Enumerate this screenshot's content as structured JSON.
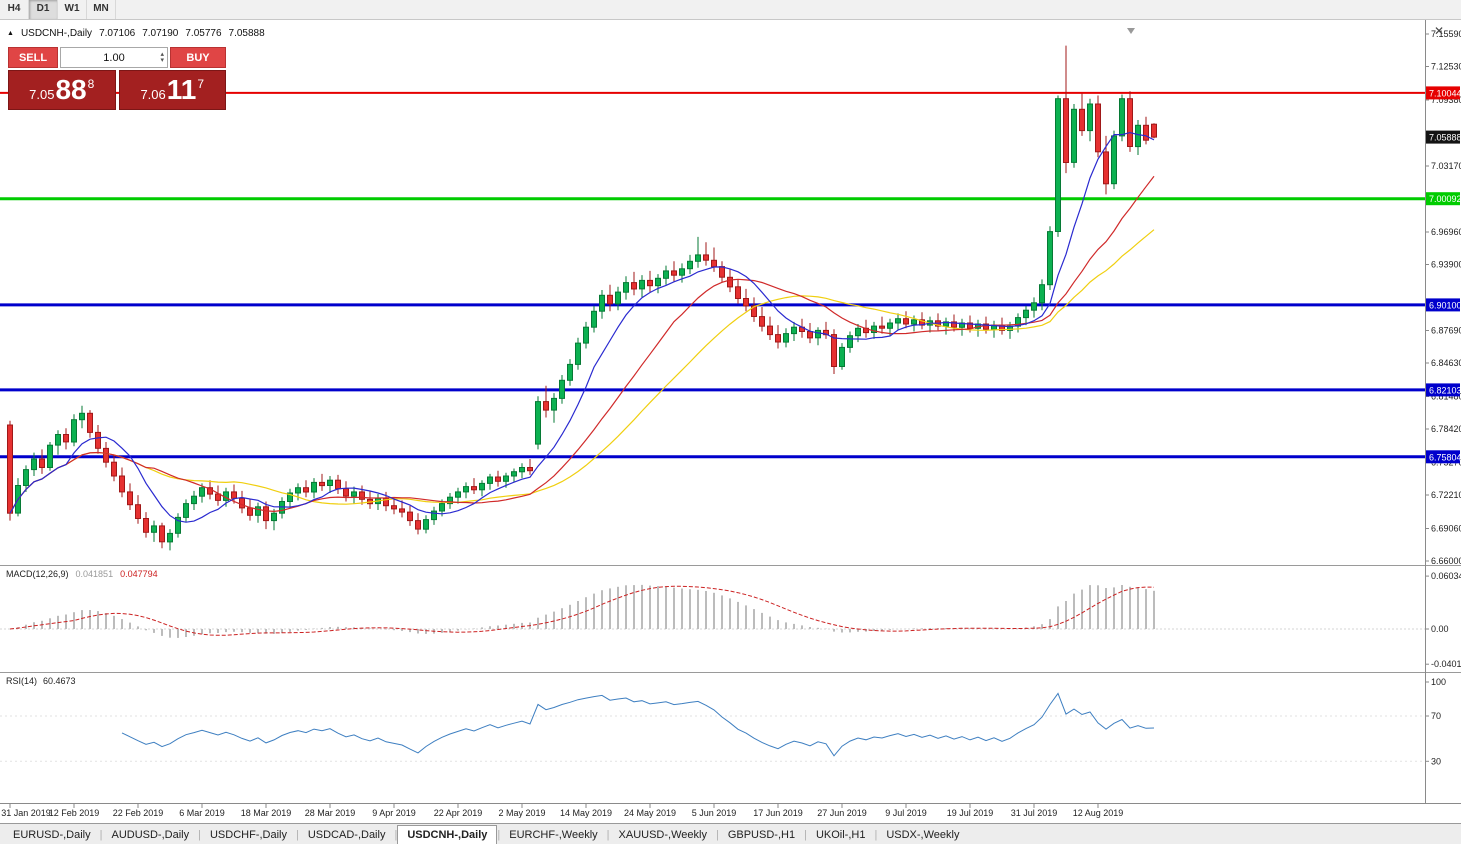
{
  "window": {
    "close_glyph": "✕"
  },
  "toolbar": {
    "timeframes": [
      {
        "label": "H4",
        "active": false
      },
      {
        "label": "D1",
        "active": true
      },
      {
        "label": "W1",
        "active": false
      },
      {
        "label": "MN",
        "active": false
      }
    ]
  },
  "chart_header": {
    "marker": "▲",
    "symbol": "USDCNH-,Daily",
    "open": "7.07106",
    "high": "7.07190",
    "low": "7.05776",
    "close": "7.05888"
  },
  "trade_panel": {
    "sell_label": "SELL",
    "buy_label": "BUY",
    "volume": "1.00",
    "spinner_up": "▴",
    "spinner_down": "▾",
    "sell_price": {
      "base": "7.05",
      "big": "88",
      "sup": "8"
    },
    "buy_price": {
      "base": "7.06",
      "big": "11",
      "sup": "7"
    }
  },
  "indicators": {
    "macd": {
      "title": "MACD(12,26,9)",
      "value_main": "0.041851",
      "value_signal": "0.047794",
      "axis": [
        {
          "label": "0.060343",
          "value": 0.060343
        },
        {
          "label": "0.00",
          "value": 0
        },
        {
          "label": "-0.040136",
          "value": -0.040136
        }
      ]
    },
    "rsi": {
      "title": "RSI(14)",
      "value": "60.4673",
      "axis": [
        {
          "label": "100",
          "value": 100
        },
        {
          "label": "70",
          "value": 70
        },
        {
          "label": "30",
          "value": 30
        }
      ]
    }
  },
  "tabs": {
    "separator": "|",
    "items": [
      {
        "label": "EURUSD-,Daily",
        "active": false
      },
      {
        "label": "AUDUSD-,Daily",
        "active": false
      },
      {
        "label": "USDCHF-,Daily",
        "active": false
      },
      {
        "label": "USDCAD-,Daily",
        "active": false
      },
      {
        "label": "USDCNH-,Daily",
        "active": true
      },
      {
        "label": "EURCHF-,Weekly",
        "active": false
      },
      {
        "label": "XAUUSD-,Weekly",
        "active": false
      },
      {
        "label": "GBPUSD-,H1",
        "active": false
      },
      {
        "label": "UKOil-,H1",
        "active": false
      },
      {
        "label": "USDX-,Weekly",
        "active": false
      }
    ]
  },
  "chart_data": {
    "type": "candlestick",
    "symbol": "USDCNH",
    "timeframe": "Daily",
    "price_range": {
      "min": 6.66,
      "max": 7.1559
    },
    "current_price": {
      "value": 7.05888,
      "label": "7.05888"
    },
    "colors": {
      "up": "#0cb151",
      "up_border": "#067a35",
      "down": "#e63131",
      "down_border": "#a01818"
    },
    "y_axis_labels": [
      {
        "label": "7.15590",
        "value": 7.1559
      },
      {
        "label": "7.12530",
        "value": 7.1253
      },
      {
        "label": "7.09380",
        "value": 7.0938
      },
      {
        "label": "7.03170",
        "value": 7.0317
      },
      {
        "label": "6.96960",
        "value": 6.9696
      },
      {
        "label": "6.93900",
        "value": 6.939
      },
      {
        "label": "6.87690",
        "value": 6.8769
      },
      {
        "label": "6.84630",
        "value": 6.8463
      },
      {
        "label": "6.81480",
        "value": 6.8148
      },
      {
        "label": "6.78420",
        "value": 6.7842
      },
      {
        "label": "6.75270",
        "value": 6.7527
      },
      {
        "label": "6.72210",
        "value": 6.7221
      },
      {
        "label": "6.69060",
        "value": 6.6906
      },
      {
        "label": "6.66000",
        "value": 6.66
      }
    ],
    "levels": [
      {
        "price": 7.10044,
        "label": "7.10044",
        "color": "#e60000",
        "width": 2
      },
      {
        "price": 7.00092,
        "label": "7.00092",
        "color": "#00cc00",
        "width": 3
      },
      {
        "price": 6.901,
        "label": "6.90100",
        "color": "#0000cc",
        "width": 3
      },
      {
        "price": 6.82103,
        "label": "6.82103",
        "color": "#0000cc",
        "width": 3
      },
      {
        "price": 6.75804,
        "label": "6.75804",
        "color": "#0000cc",
        "width": 3
      }
    ],
    "moving_averages": [
      {
        "period": 8,
        "color": "#2a2ad0"
      },
      {
        "period": 18,
        "color": "#d02a2a"
      },
      {
        "period": 28,
        "color": "#f0cf10"
      }
    ],
    "x_labels": {
      "indices": [
        0,
        8,
        16,
        24,
        32,
        40,
        48,
        56,
        64,
        72,
        80,
        88,
        96,
        104,
        112,
        120,
        128,
        136
      ],
      "labels": [
        "31 Jan 2019",
        "12 Feb 2019",
        "22 Feb 2019",
        "6 Mar 2019",
        "18 Mar 2019",
        "28 Mar 2019",
        "9 Apr 2019",
        "22 Apr 2019",
        "2 May 2019",
        "14 May 2019",
        "24 May 2019",
        "5 Jun 2019",
        "17 Jun 2019",
        "27 Jun 2019",
        "9 Jul 2019",
        "19 Jul 2019",
        "31 Jul 2019",
        "12 Aug 2019"
      ]
    },
    "candles": [
      [
        6.788,
        6.792,
        6.698,
        6.705
      ],
      [
        6.705,
        6.738,
        6.702,
        6.731
      ],
      [
        6.731,
        6.75,
        6.725,
        6.746
      ],
      [
        6.746,
        6.762,
        6.74,
        6.756
      ],
      [
        6.756,
        6.765,
        6.742,
        6.748
      ],
      [
        6.748,
        6.772,
        6.745,
        6.769
      ],
      [
        6.769,
        6.783,
        6.76,
        6.779
      ],
      [
        6.779,
        6.785,
        6.765,
        6.772
      ],
      [
        6.772,
        6.798,
        6.768,
        6.793
      ],
      [
        6.793,
        6.806,
        6.785,
        6.799
      ],
      [
        6.799,
        6.802,
        6.776,
        6.781
      ],
      [
        6.781,
        6.788,
        6.761,
        6.766
      ],
      [
        6.766,
        6.772,
        6.748,
        6.753
      ],
      [
        6.753,
        6.76,
        6.735,
        6.74
      ],
      [
        6.74,
        6.748,
        6.72,
        6.725
      ],
      [
        6.725,
        6.733,
        6.708,
        6.713
      ],
      [
        6.713,
        6.722,
        6.695,
        6.7
      ],
      [
        6.7,
        6.706,
        6.682,
        6.687
      ],
      [
        6.687,
        6.698,
        6.678,
        6.693
      ],
      [
        6.693,
        6.696,
        6.672,
        6.678
      ],
      [
        6.678,
        6.69,
        6.67,
        6.686
      ],
      [
        6.686,
        6.705,
        6.682,
        6.701
      ],
      [
        6.701,
        6.718,
        6.697,
        6.714
      ],
      [
        6.714,
        6.726,
        6.708,
        6.721
      ],
      [
        6.721,
        6.733,
        6.715,
        6.729
      ],
      [
        6.729,
        6.736,
        6.718,
        6.723
      ],
      [
        6.723,
        6.731,
        6.712,
        6.717
      ],
      [
        6.717,
        6.729,
        6.711,
        6.725
      ],
      [
        6.725,
        6.732,
        6.714,
        6.719
      ],
      [
        6.719,
        6.726,
        6.705,
        6.71
      ],
      [
        6.71,
        6.718,
        6.698,
        6.703
      ],
      [
        6.703,
        6.715,
        6.696,
        6.711
      ],
      [
        6.711,
        6.716,
        6.69,
        6.698
      ],
      [
        6.698,
        6.709,
        6.689,
        6.705
      ],
      [
        6.705,
        6.72,
        6.7,
        6.716
      ],
      [
        6.716,
        6.728,
        6.71,
        6.724
      ],
      [
        6.724,
        6.733,
        6.717,
        6.729
      ],
      [
        6.729,
        6.736,
        6.72,
        6.725
      ],
      [
        6.725,
        6.738,
        6.719,
        6.734
      ],
      [
        6.734,
        6.742,
        6.726,
        6.731
      ],
      [
        6.731,
        6.74,
        6.724,
        6.736
      ],
      [
        6.736,
        6.741,
        6.723,
        6.728
      ],
      [
        6.728,
        6.735,
        6.716,
        6.721
      ],
      [
        6.721,
        6.73,
        6.714,
        6.725
      ],
      [
        6.725,
        6.731,
        6.713,
        6.718
      ],
      [
        6.718,
        6.726,
        6.709,
        6.714
      ],
      [
        6.714,
        6.723,
        6.708,
        6.719
      ],
      [
        6.719,
        6.725,
        6.707,
        6.712
      ],
      [
        6.712,
        6.72,
        6.704,
        6.709
      ],
      [
        6.709,
        6.717,
        6.701,
        6.706
      ],
      [
        6.706,
        6.712,
        6.693,
        6.698
      ],
      [
        6.698,
        6.705,
        6.685,
        6.69
      ],
      [
        6.69,
        6.703,
        6.686,
        6.699
      ],
      [
        6.699,
        6.711,
        6.694,
        6.707
      ],
      [
        6.707,
        6.718,
        6.702,
        6.714
      ],
      [
        6.714,
        6.724,
        6.709,
        6.72
      ],
      [
        6.72,
        6.729,
        6.714,
        6.725
      ],
      [
        6.725,
        6.734,
        6.719,
        6.73
      ],
      [
        6.73,
        6.738,
        6.723,
        6.727
      ],
      [
        6.727,
        6.736,
        6.721,
        6.733
      ],
      [
        6.733,
        6.742,
        6.727,
        6.739
      ],
      [
        6.739,
        6.745,
        6.73,
        6.735
      ],
      [
        6.735,
        6.743,
        6.729,
        6.74
      ],
      [
        6.74,
        6.747,
        6.734,
        6.744
      ],
      [
        6.744,
        6.752,
        6.738,
        6.748
      ],
      [
        6.748,
        6.756,
        6.741,
        6.745
      ],
      [
        6.77,
        6.815,
        6.765,
        6.81
      ],
      [
        6.81,
        6.825,
        6.795,
        6.802
      ],
      [
        6.802,
        6.818,
        6.79,
        6.813
      ],
      [
        6.813,
        6.835,
        6.808,
        6.83
      ],
      [
        6.83,
        6.85,
        6.825,
        6.845
      ],
      [
        6.845,
        6.87,
        6.84,
        6.865
      ],
      [
        6.865,
        6.885,
        6.86,
        6.88
      ],
      [
        6.88,
        6.9,
        6.875,
        6.895
      ],
      [
        6.895,
        6.915,
        6.888,
        6.91
      ],
      [
        6.91,
        6.92,
        6.895,
        6.902
      ],
      [
        6.902,
        6.918,
        6.896,
        6.913
      ],
      [
        6.913,
        6.928,
        6.906,
        6.922
      ],
      [
        6.922,
        6.932,
        6.91,
        6.916
      ],
      [
        6.916,
        6.929,
        6.908,
        6.924
      ],
      [
        6.924,
        6.933,
        6.913,
        6.919
      ],
      [
        6.919,
        6.93,
        6.912,
        6.926
      ],
      [
        6.926,
        6.938,
        6.92,
        6.933
      ],
      [
        6.933,
        6.942,
        6.923,
        6.929
      ],
      [
        6.929,
        6.94,
        6.922,
        6.935
      ],
      [
        6.935,
        6.948,
        6.93,
        6.942
      ],
      [
        6.942,
        6.965,
        6.936,
        6.948
      ],
      [
        6.948,
        6.96,
        6.938,
        6.943
      ],
      [
        6.943,
        6.955,
        6.932,
        6.937
      ],
      [
        6.937,
        6.942,
        6.922,
        6.927
      ],
      [
        6.927,
        6.935,
        6.913,
        6.918
      ],
      [
        6.918,
        6.925,
        6.902,
        6.907
      ],
      [
        6.907,
        6.916,
        6.895,
        6.9
      ],
      [
        6.9,
        6.908,
        6.885,
        6.89
      ],
      [
        6.89,
        6.899,
        6.876,
        6.881
      ],
      [
        6.881,
        6.89,
        6.868,
        6.873
      ],
      [
        6.873,
        6.882,
        6.86,
        6.866
      ],
      [
        6.866,
        6.879,
        6.861,
        6.874
      ],
      [
        6.874,
        6.885,
        6.867,
        6.88
      ],
      [
        6.88,
        6.888,
        6.87,
        6.876
      ],
      [
        6.876,
        6.884,
        6.865,
        6.87
      ],
      [
        6.87,
        6.88,
        6.863,
        6.877
      ],
      [
        6.877,
        6.885,
        6.869,
        6.873
      ],
      [
        6.873,
        6.878,
        6.836,
        6.843
      ],
      [
        6.843,
        6.865,
        6.84,
        6.861
      ],
      [
        6.861,
        6.876,
        6.856,
        6.872
      ],
      [
        6.872,
        6.883,
        6.866,
        6.879
      ],
      [
        6.879,
        6.887,
        6.87,
        6.875
      ],
      [
        6.875,
        6.885,
        6.869,
        6.881
      ],
      [
        6.881,
        6.89,
        6.874,
        6.879
      ],
      [
        6.879,
        6.888,
        6.872,
        6.884
      ],
      [
        6.884,
        6.893,
        6.877,
        6.888
      ],
      [
        6.888,
        6.895,
        6.879,
        6.883
      ],
      [
        6.883,
        6.891,
        6.876,
        6.887
      ],
      [
        6.887,
        6.894,
        6.878,
        6.882
      ],
      [
        6.882,
        6.89,
        6.875,
        6.886
      ],
      [
        6.886,
        6.893,
        6.877,
        6.881
      ],
      [
        6.881,
        6.889,
        6.873,
        6.885
      ],
      [
        6.885,
        6.892,
        6.876,
        6.88
      ],
      [
        6.88,
        6.888,
        6.872,
        6.884
      ],
      [
        6.884,
        6.891,
        6.875,
        6.879
      ],
      [
        6.879,
        6.887,
        6.871,
        6.883
      ],
      [
        6.883,
        6.89,
        6.874,
        6.878
      ],
      [
        6.878,
        6.886,
        6.87,
        6.882
      ],
      [
        6.882,
        6.889,
        6.873,
        6.877
      ],
      [
        6.877,
        6.885,
        6.869,
        6.881
      ],
      [
        6.881,
        6.893,
        6.875,
        6.889
      ],
      [
        6.889,
        6.9,
        6.882,
        6.896
      ],
      [
        6.896,
        6.908,
        6.889,
        6.903
      ],
      [
        6.903,
        6.925,
        6.896,
        6.92
      ],
      [
        6.92,
        6.975,
        6.915,
        6.97
      ],
      [
        6.97,
        7.098,
        6.965,
        7.095
      ],
      [
        7.095,
        7.145,
        7.025,
        7.035
      ],
      [
        7.035,
        7.09,
        7.03,
        7.085
      ],
      [
        7.085,
        7.1,
        7.06,
        7.065
      ],
      [
        7.065,
        7.095,
        7.055,
        7.09
      ],
      [
        7.09,
        7.098,
        7.04,
        7.045
      ],
      [
        7.045,
        7.06,
        7.005,
        7.015
      ],
      [
        7.015,
        7.065,
        7.01,
        7.06
      ],
      [
        7.06,
        7.099,
        7.055,
        7.095
      ],
      [
        7.095,
        7.102,
        7.045,
        7.05
      ],
      [
        7.05,
        7.075,
        7.042,
        7.07
      ],
      [
        7.07,
        7.078,
        7.052,
        7.056
      ],
      [
        7.07106,
        7.0719,
        7.05776,
        7.05888
      ]
    ]
  }
}
